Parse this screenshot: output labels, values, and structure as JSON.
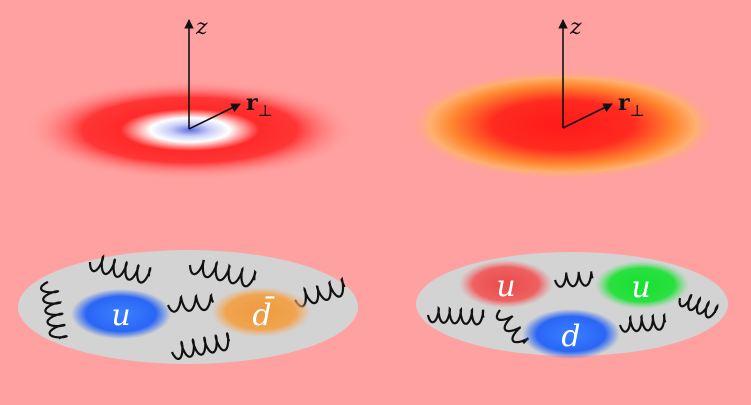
{
  "top_left": {
    "z_label": "z",
    "r_label": "r",
    "r_sub": "⊥"
  },
  "top_right": {
    "z_label": "z",
    "r_label": "r",
    "r_sub": "⊥"
  },
  "pion": {
    "quark1": "u",
    "quark2": "d̄"
  },
  "proton": {
    "quark1": "u",
    "quark2": "u",
    "quark3": "d"
  },
  "colors": {
    "background": "#ffa1a0",
    "bag": "#d3d3d3",
    "quark_blue": "#2f6fff",
    "quark_orange": "#f0a040",
    "quark_red": "#f05a5a",
    "quark_green": "#20e040"
  },
  "icons": [
    "gluon-spring-icon",
    "axis-arrow-icon"
  ]
}
